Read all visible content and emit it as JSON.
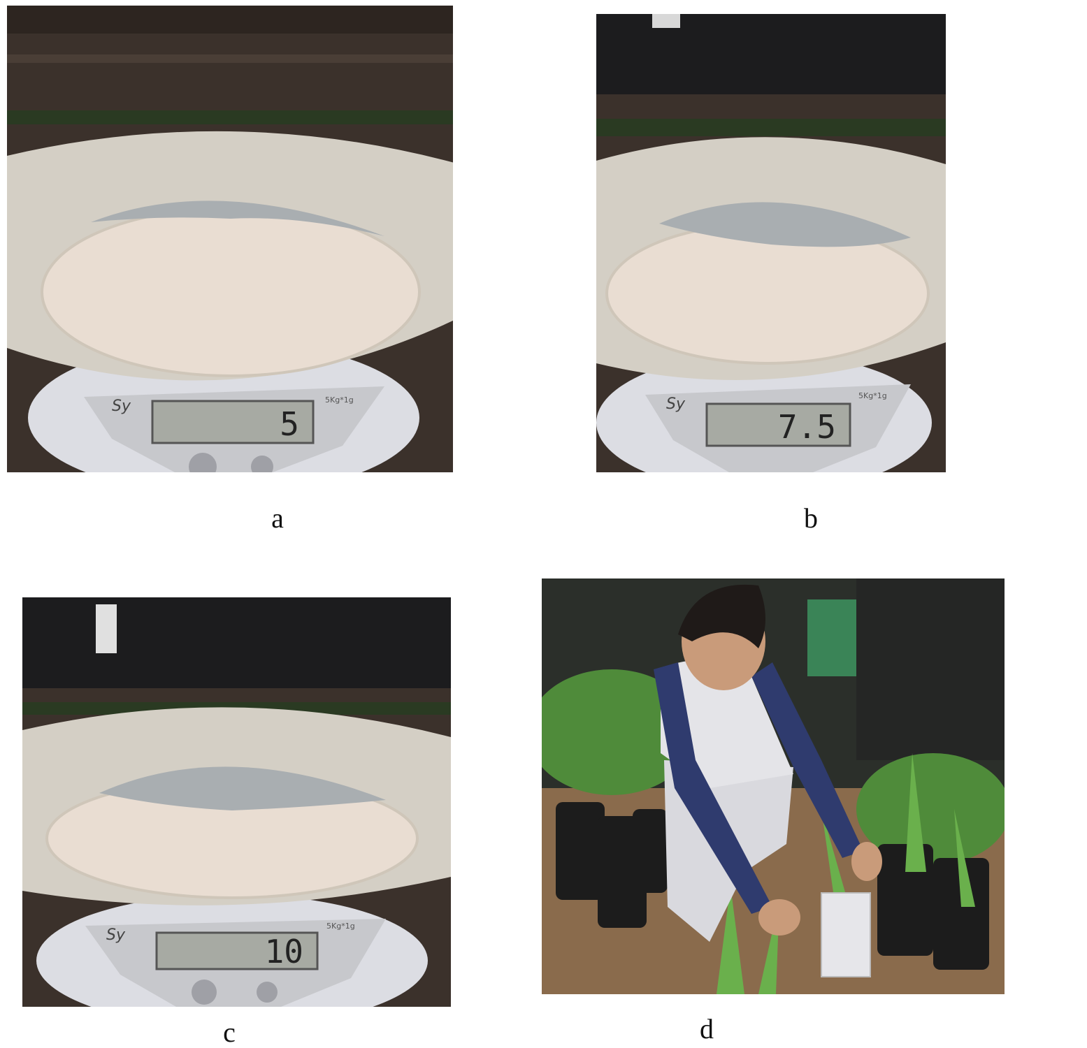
{
  "panels": [
    {
      "id": "a",
      "caption": "a",
      "scale_reading": "5",
      "scale_brand": "Sy",
      "scale_spec": "5Kg*1g"
    },
    {
      "id": "b",
      "caption": "b",
      "scale_reading": "7.5",
      "scale_brand": "Sy",
      "scale_spec": "5Kg*1g"
    },
    {
      "id": "c",
      "caption": "c",
      "scale_reading": "10",
      "scale_brand": "Sy",
      "scale_spec": "5Kg*1g"
    },
    {
      "id": "d",
      "caption": "d"
    }
  ],
  "colors": {
    "wood_dark": "#3b312b",
    "bowl": "#d7d1c6",
    "bowl_inner": "#e9ddd2",
    "pellets": "#a9aeb1",
    "scale_body": "#dcdde3",
    "lcd": "#a7aaa3",
    "foliage": "#4f8b3a",
    "shirt_navy": "#2f3b6e"
  }
}
